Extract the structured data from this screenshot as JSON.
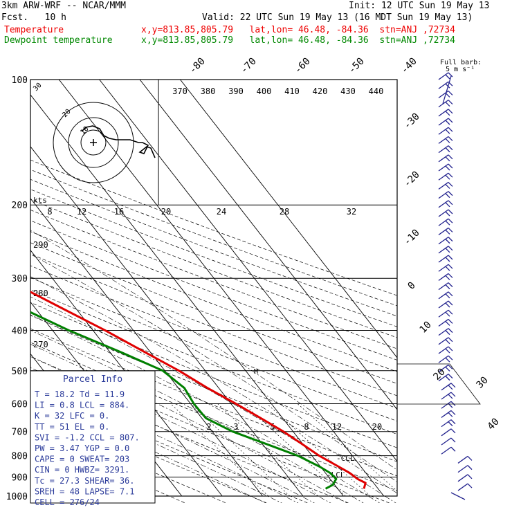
{
  "header": {
    "model": "3km ARW-WRF -- NCAR/MMM",
    "init": "Init: 12 UTC Sun 19 May 13",
    "fcst": "Fcst.   10 h",
    "valid": "Valid: 22 UTC Sun 19 May 13 (16 MDT Sun 19 May 13)",
    "temp_label": "Temperature",
    "temp_loc": "x,y=813.85,805.79   lat,lon= 46.48, -84.36  stn=ANJ ,72734",
    "dew_label": "Dewpoint temperature",
    "dew_loc": "x,y=813.85,805.79   lat,lon= 46.48, -84.36  stn=ANJ ,72734"
  },
  "wind_legend": {
    "line1": "Full barb:",
    "line2": "5 m s⁻¹"
  },
  "parcel": {
    "title": "Parcel Info",
    "rows": [
      "T  =   18.2 Td =  11.9",
      "LI =    0.8 LCL =  884.",
      "K  =     32 LFC =    0.",
      "TT =     51 EL  =    0.",
      "SVI =  -1.2 CCL =  807.",
      "PW =   3.47 YGP =   0.0",
      "CAPE =    0 SWEAT=  203",
      "CIN =     0 HWBZ= 3291.",
      "Tc =   27.3 SHEAR=   36.",
      "SREH =   48 LAPSE=   7.1",
      "CELL = 276/24"
    ]
  },
  "hodograph": {
    "units": "kts",
    "ring_labels": [
      "10",
      "20",
      "30"
    ],
    "speed_ticks": [
      "8",
      "12",
      "16",
      "20",
      "24",
      "28",
      "32"
    ]
  },
  "markers": {
    "ccl": "-CCL",
    "lcl": "-LCL"
  },
  "chart_data": {
    "type": "line",
    "title": "",
    "y_axis": {
      "label": "",
      "scale": "log-pressure",
      "range": [
        1000,
        100
      ],
      "ticks": [
        "100",
        "200",
        "300",
        "400",
        "500",
        "600",
        "700",
        "800",
        "900",
        "1000"
      ]
    },
    "skewed_temperature_ticks": [
      "-80",
      "-70",
      "-60",
      "-50",
      "-40",
      "-30",
      "-20",
      "-10",
      "0",
      "10",
      "20",
      "30",
      "40"
    ],
    "theta_labels": [
      "370",
      "380",
      "390",
      "400",
      "410",
      "420",
      "430",
      "440"
    ],
    "theta_left_labels": [
      "290",
      "280",
      "270"
    ],
    "mixing_ratio_labels": [
      "2",
      "3",
      "5",
      "8",
      "12",
      "20"
    ],
    "series": [
      {
        "name": "Temperature",
        "color": "#e00000",
        "points": [
          [
            960,
            16.5
          ],
          [
            930,
            18.0
          ],
          [
            910,
            16.8
          ],
          [
            880,
            16.0
          ],
          [
            850,
            14.5
          ],
          [
            800,
            11.8
          ],
          [
            750,
            9.8
          ],
          [
            700,
            7.6
          ],
          [
            650,
            4.6
          ],
          [
            600,
            1.2
          ],
          [
            550,
            -2.8
          ],
          [
            500,
            -6.5
          ],
          [
            450,
            -11.5
          ],
          [
            400,
            -17.0
          ],
          [
            350,
            -24.0
          ],
          [
            300,
            -32.0
          ],
          [
            250,
            -41.0
          ],
          [
            220,
            -47.0
          ],
          [
            200,
            -51.0
          ],
          [
            180,
            -55.5
          ],
          [
            160,
            -58.5
          ],
          [
            140,
            -57.0
          ],
          [
            125,
            -56.5
          ],
          [
            110,
            -56.0
          ],
          [
            100,
            -56.5
          ]
        ]
      },
      {
        "name": "Dewpoint temperature",
        "color": "#008000",
        "points": [
          [
            960,
            7.0
          ],
          [
            940,
            9.5
          ],
          [
            910,
            11.5
          ],
          [
            880,
            11.2
          ],
          [
            850,
            9.8
          ],
          [
            800,
            6.5
          ],
          [
            750,
            1.0
          ],
          [
            700,
            -5.0
          ],
          [
            650,
            -9.0
          ],
          [
            600,
            -9.2
          ],
          [
            550,
            -8.5
          ],
          [
            500,
            -10.5
          ],
          [
            450,
            -17.5
          ],
          [
            400,
            -26.0
          ],
          [
            350,
            -34.0
          ],
          [
            300,
            -40.0
          ],
          [
            260,
            -52.0
          ],
          [
            230,
            -60.0
          ],
          [
            200,
            -68.0
          ],
          [
            180,
            -69.0
          ],
          [
            160,
            -68.0
          ],
          [
            140,
            -67.0
          ],
          [
            125,
            -68.0
          ],
          [
            110,
            -74.0
          ],
          [
            100,
            -80.0
          ]
        ]
      }
    ],
    "wind_barbs": {
      "pressure_range": [
        970,
        100
      ],
      "count": 46
    }
  }
}
